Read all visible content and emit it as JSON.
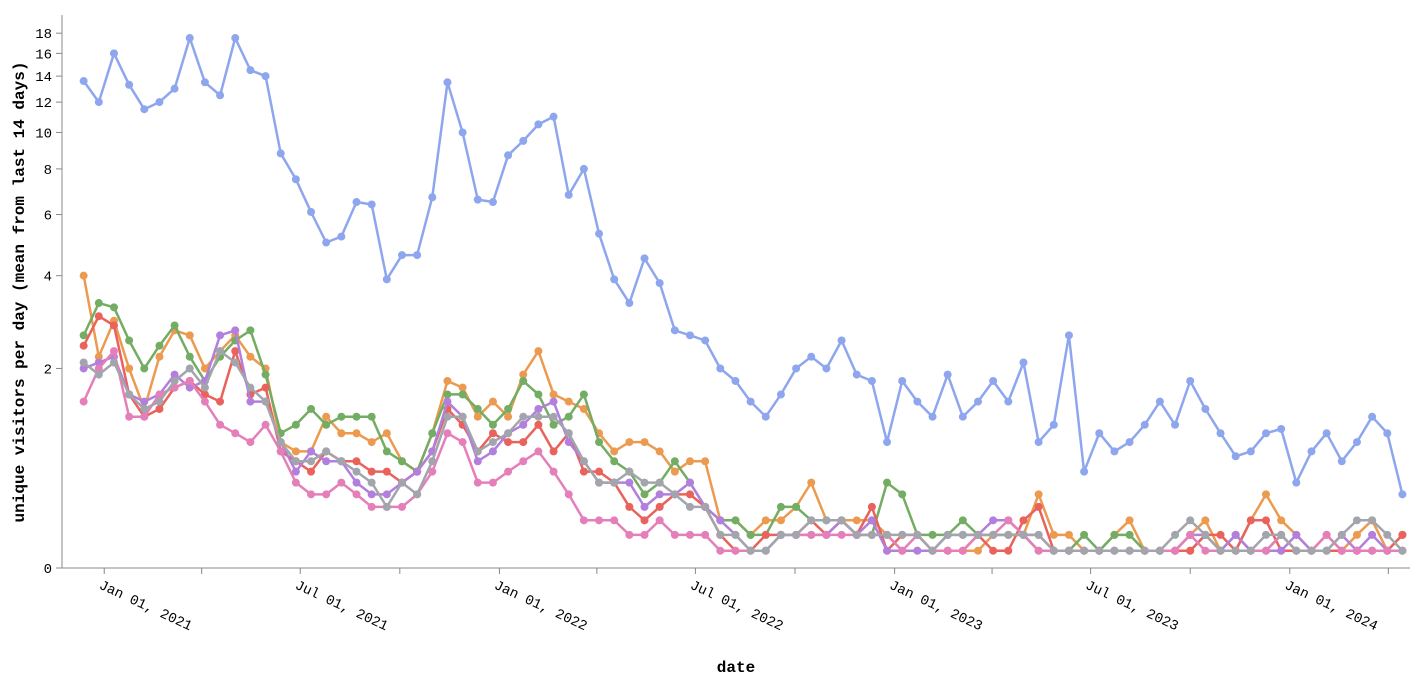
{
  "chart_data": {
    "type": "line",
    "x_label": "date",
    "y_label": "unique visitors per day (mean from last 14 days)",
    "yscale": "symlog",
    "ylim": [
      0,
      20
    ],
    "yticks": [
      0,
      2,
      4,
      6,
      8,
      10,
      12,
      14,
      16,
      18
    ],
    "xlim": [
      "2020-11-23",
      "2024-04-21"
    ],
    "xticks": [
      {
        "value": "2021-01-01",
        "label": "Jan 01, 2021"
      },
      {
        "value": "2021-04-01",
        "label": null
      },
      {
        "value": "2021-07-01",
        "label": "Jul 01, 2021"
      },
      {
        "value": "2021-10-01",
        "label": null
      },
      {
        "value": "2022-01-01",
        "label": "Jan 01, 2022"
      },
      {
        "value": "2022-04-01",
        "label": null
      },
      {
        "value": "2022-07-01",
        "label": "Jul 01, 2022"
      },
      {
        "value": "2022-10-01",
        "label": null
      },
      {
        "value": "2023-01-01",
        "label": "Jan 01, 2023"
      },
      {
        "value": "2023-04-01",
        "label": null
      },
      {
        "value": "2023-07-01",
        "label": "Jul 01, 2023"
      },
      {
        "value": "2023-10-01",
        "label": null
      },
      {
        "value": "2024-01-01",
        "label": "Jan 01, 2024"
      },
      {
        "value": "2024-04-01",
        "label": null
      }
    ],
    "x": [
      "2020-12-13",
      "2020-12-27",
      "2021-01-10",
      "2021-01-24",
      "2021-02-07",
      "2021-02-21",
      "2021-03-07",
      "2021-03-21",
      "2021-04-04",
      "2021-04-18",
      "2021-05-02",
      "2021-05-16",
      "2021-05-30",
      "2021-06-13",
      "2021-06-27",
      "2021-07-11",
      "2021-07-25",
      "2021-08-08",
      "2021-08-22",
      "2021-09-05",
      "2021-09-19",
      "2021-10-03",
      "2021-10-17",
      "2021-10-31",
      "2021-11-14",
      "2021-11-28",
      "2021-12-12",
      "2021-12-26",
      "2022-01-09",
      "2022-01-23",
      "2022-02-06",
      "2022-02-20",
      "2022-03-06",
      "2022-03-20",
      "2022-04-03",
      "2022-04-17",
      "2022-05-01",
      "2022-05-15",
      "2022-05-29",
      "2022-06-12",
      "2022-06-26",
      "2022-07-10",
      "2022-07-24",
      "2022-08-07",
      "2022-08-21",
      "2022-09-04",
      "2022-09-18",
      "2022-10-02",
      "2022-10-16",
      "2022-10-30",
      "2022-11-13",
      "2022-11-27",
      "2022-12-11",
      "2022-12-25",
      "2023-01-08",
      "2023-01-22",
      "2023-02-05",
      "2023-02-19",
      "2023-03-05",
      "2023-03-19",
      "2023-04-02",
      "2023-04-16",
      "2023-04-30",
      "2023-05-14",
      "2023-05-28",
      "2023-06-11",
      "2023-06-25",
      "2023-07-09",
      "2023-07-23",
      "2023-08-06",
      "2023-08-20",
      "2023-09-03",
      "2023-09-17",
      "2023-10-01",
      "2023-10-15",
      "2023-10-29",
      "2023-11-12",
      "2023-11-26",
      "2023-12-10",
      "2023-12-24",
      "2024-01-07",
      "2024-01-21",
      "2024-02-04",
      "2024-02-18",
      "2024-03-03",
      "2024-03-17",
      "2024-03-31",
      "2024-04-14"
    ],
    "series": [
      {
        "color": "#8ea6ee",
        "values": [
          13.6,
          12,
          16,
          13.3,
          11.5,
          12,
          13,
          17.5,
          13.5,
          12.5,
          17.5,
          14.5,
          14,
          8.8,
          7.5,
          6.1,
          5,
          5.2,
          6.5,
          6.4,
          3.9,
          4.6,
          4.6,
          6.7,
          13.5,
          10,
          6.6,
          6.5,
          8.7,
          9.5,
          10.5,
          11,
          6.8,
          8,
          5.3,
          3.9,
          3.3,
          4.5,
          3.8,
          2.7,
          2.6,
          2.5,
          2.0,
          1.8,
          1.5,
          1.3,
          1.6,
          2.0,
          2.2,
          2.0,
          2.5,
          1.9,
          1.8,
          1.0,
          1.8,
          1.5,
          1.3,
          1.9,
          1.3,
          1.5,
          1.8,
          1.5,
          2.1,
          1.0,
          1.2,
          2.6,
          0.7,
          1.1,
          0.9,
          1.0,
          1.2,
          1.5,
          1.2,
          1.8,
          1.4,
          1.1,
          0.85,
          0.9,
          1.1,
          1.15,
          0.6,
          0.9,
          1.1,
          0.8,
          1.0,
          1.3,
          1.1,
          0.5
        ]
      },
      {
        "color": "#ec9a4f",
        "values": [
          4.0,
          2.2,
          2.9,
          2.0,
          1.4,
          2.2,
          2.7,
          2.6,
          2.0,
          2.3,
          2.6,
          2.2,
          2.0,
          1.0,
          0.9,
          0.9,
          1.3,
          1.1,
          1.1,
          1.0,
          1.1,
          0.8,
          0.7,
          1.1,
          1.8,
          1.7,
          1.3,
          1.5,
          1.3,
          1.9,
          2.3,
          1.6,
          1.5,
          1.4,
          1.1,
          0.9,
          1.0,
          1.0,
          0.9,
          0.7,
          0.8,
          0.8,
          0.3,
          0.3,
          0.2,
          0.3,
          0.3,
          0.4,
          0.6,
          0.3,
          0.3,
          0.3,
          0.3,
          0.2,
          0.1,
          0.1,
          0.1,
          0.1,
          0.1,
          0.1,
          0.2,
          0.2,
          0.2,
          0.5,
          0.2,
          0.2,
          0.1,
          0.1,
          0.2,
          0.3,
          0.1,
          0.1,
          0.1,
          0.2,
          0.3,
          0.1,
          0.1,
          0.3,
          0.5,
          0.3,
          0.2,
          0.1,
          0.2,
          0.1,
          0.2,
          0.3,
          0.1,
          0.1
        ]
      },
      {
        "color": "#73ad63",
        "values": [
          2.6,
          3.3,
          3.2,
          2.5,
          2.0,
          2.4,
          2.8,
          2.2,
          1.8,
          2.2,
          2.5,
          2.7,
          1.9,
          1.1,
          1.2,
          1.4,
          1.2,
          1.3,
          1.3,
          1.3,
          0.9,
          0.8,
          0.7,
          1.1,
          1.6,
          1.6,
          1.4,
          1.2,
          1.4,
          1.8,
          1.6,
          1.2,
          1.3,
          1.6,
          1.0,
          0.8,
          0.7,
          0.5,
          0.6,
          0.8,
          0.6,
          0.4,
          0.3,
          0.3,
          0.2,
          0.2,
          0.4,
          0.4,
          0.3,
          0.3,
          0.3,
          0.2,
          0.2,
          0.6,
          0.5,
          0.2,
          0.2,
          0.2,
          0.3,
          0.2,
          0.2,
          0.2,
          0.2,
          0.1,
          0.1,
          0.1,
          0.2,
          0.1,
          0.2,
          0.2,
          0.1,
          0.1,
          0.1,
          0.1,
          0.2,
          0.1,
          0.2,
          0.1,
          0.1,
          0.2,
          0.1,
          0.1,
          0.1,
          0.1,
          0.1,
          0.1,
          0.1,
          0.2
        ]
      },
      {
        "color": "#e9625c",
        "values": [
          2.4,
          3.0,
          2.8,
          1.6,
          1.3,
          1.4,
          1.7,
          1.8,
          1.6,
          1.5,
          2.3,
          1.6,
          1.7,
          0.9,
          0.8,
          0.7,
          0.9,
          0.8,
          0.8,
          0.7,
          0.7,
          0.6,
          0.7,
          0.9,
          1.4,
          1.2,
          0.9,
          1.1,
          1.0,
          1.0,
          1.2,
          0.9,
          1.1,
          0.7,
          0.7,
          0.6,
          0.4,
          0.3,
          0.4,
          0.5,
          0.5,
          0.4,
          0.2,
          0.1,
          0.1,
          0.2,
          0.2,
          0.2,
          0.3,
          0.2,
          0.3,
          0.2,
          0.4,
          0.1,
          0.2,
          0.2,
          0.1,
          0.1,
          0.1,
          0.2,
          0.1,
          0.1,
          0.3,
          0.4,
          0.1,
          0.1,
          0.1,
          0.1,
          0.1,
          0.1,
          0.1,
          0.1,
          0.1,
          0.1,
          0.2,
          0.2,
          0.1,
          0.3,
          0.3,
          0.1,
          0.1,
          0.1,
          0.1,
          0.1,
          0.1,
          0.1,
          0.1,
          0.2
        ]
      },
      {
        "color": "#b27fdc",
        "values": [
          2.0,
          2.1,
          2.2,
          1.6,
          1.5,
          1.6,
          1.9,
          1.7,
          1.8,
          2.6,
          2.7,
          1.5,
          1.5,
          1.0,
          0.7,
          0.9,
          0.8,
          0.8,
          0.6,
          0.5,
          0.5,
          0.6,
          0.7,
          0.9,
          1.5,
          1.3,
          0.8,
          0.9,
          1.1,
          1.2,
          1.4,
          1.5,
          1.0,
          0.8,
          0.6,
          0.6,
          0.6,
          0.4,
          0.5,
          0.5,
          0.6,
          0.4,
          0.3,
          0.2,
          0.1,
          0.1,
          0.2,
          0.2,
          0.2,
          0.2,
          0.3,
          0.2,
          0.3,
          0.1,
          0.1,
          0.1,
          0.1,
          0.2,
          0.2,
          0.2,
          0.3,
          0.3,
          0.2,
          0.2,
          0.1,
          0.1,
          0.1,
          0.1,
          0.1,
          0.1,
          0.1,
          0.1,
          0.1,
          0.2,
          0.2,
          0.1,
          0.2,
          0.1,
          0.1,
          0.1,
          0.2,
          0.1,
          0.1,
          0.2,
          0.1,
          0.2,
          0.1,
          0.1
        ]
      },
      {
        "color": "#e57fba",
        "values": [
          1.5,
          2.0,
          2.3,
          1.3,
          1.3,
          1.6,
          1.7,
          1.8,
          1.5,
          1.2,
          1.1,
          1.0,
          1.2,
          0.9,
          0.6,
          0.5,
          0.5,
          0.6,
          0.5,
          0.4,
          0.4,
          0.4,
          0.5,
          0.7,
          1.1,
          1.0,
          0.6,
          0.6,
          0.7,
          0.8,
          0.9,
          0.7,
          0.5,
          0.3,
          0.3,
          0.3,
          0.2,
          0.2,
          0.3,
          0.2,
          0.2,
          0.2,
          0.1,
          0.1,
          0.1,
          0.1,
          0.2,
          0.2,
          0.2,
          0.2,
          0.2,
          0.2,
          0.2,
          0.2,
          0.1,
          0.2,
          0.1,
          0.1,
          0.1,
          0.2,
          0.2,
          0.3,
          0.2,
          0.1,
          0.1,
          0.1,
          0.1,
          0.1,
          0.1,
          0.1,
          0.1,
          0.1,
          0.1,
          0.2,
          0.1,
          0.1,
          0.1,
          0.1,
          0.1,
          0.2,
          0.1,
          0.1,
          0.2,
          0.1,
          0.1,
          0.1,
          0.1,
          0.1
        ]
      },
      {
        "color": "#a3a5ad",
        "values": [
          2.1,
          1.9,
          2.1,
          1.6,
          1.4,
          1.5,
          1.8,
          2.0,
          1.7,
          2.3,
          2.1,
          1.7,
          1.5,
          1.0,
          0.8,
          0.8,
          0.9,
          0.8,
          0.7,
          0.6,
          0.4,
          0.6,
          0.5,
          0.8,
          1.3,
          1.3,
          0.9,
          1.0,
          1.1,
          1.3,
          1.3,
          1.3,
          1.1,
          0.8,
          0.6,
          0.6,
          0.7,
          0.6,
          0.6,
          0.5,
          0.4,
          0.4,
          0.2,
          0.2,
          0.1,
          0.1,
          0.2,
          0.2,
          0.3,
          0.3,
          0.3,
          0.2,
          0.2,
          0.2,
          0.2,
          0.2,
          0.1,
          0.2,
          0.2,
          0.2,
          0.2,
          0.2,
          0.2,
          0.2,
          0.1,
          0.1,
          0.1,
          0.1,
          0.1,
          0.1,
          0.1,
          0.1,
          0.2,
          0.3,
          0.2,
          0.1,
          0.1,
          0.1,
          0.2,
          0.2,
          0.1,
          0.1,
          0.1,
          0.2,
          0.3,
          0.3,
          0.2,
          0.1
        ]
      }
    ]
  }
}
